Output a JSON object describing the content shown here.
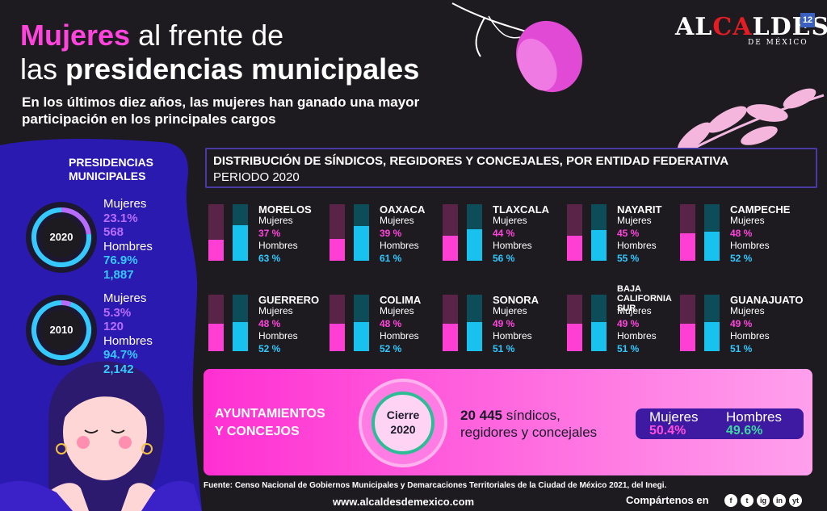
{
  "header": {
    "title_part1": "Mujeres",
    "title_part2": " al frente de",
    "title_part3": "las ",
    "title_part4": "presidencias municipales",
    "subtitle": "En los últimos diez años, las mujeres han ganado una mayor participación en los principales cargos"
  },
  "logo": {
    "text_a": "AL",
    "text_b": "CA",
    "text_c": "LDES",
    "sub": "DE MÉXICO",
    "badge": "12"
  },
  "presidencias": {
    "title_line1": "PRESIDENCIAS",
    "title_line2": "MUNICIPALES",
    "years": [
      {
        "year": "2020",
        "mujeres_label": "Mujeres",
        "mujeres_pct": "23.1%",
        "mujeres_n": "568",
        "hombres_label": "Hombres",
        "hombres_pct": "76.9%",
        "hombres_n": "1,887",
        "women_share": 23.1
      },
      {
        "year": "2010",
        "mujeres_label": "Mujeres",
        "mujeres_pct": "5.3%",
        "mujeres_n": "120",
        "hombres_label": "Hombres",
        "hombres_pct": "94.7%",
        "hombres_n": "2,142",
        "women_share": 5.3
      }
    ]
  },
  "distribution": {
    "title": "DISTRIBUCIÓN DE SÍNDICOS, REGIDORES Y CONCEJALES, POR ENTIDAD FEDERATIVA",
    "subtitle": "PERIODO 2020"
  },
  "chart_data": {
    "type": "bar",
    "title": "DISTRIBUCIÓN DE SÍNDICOS, REGIDORES Y CONCEJALES, POR ENTIDAD FEDERATIVA",
    "categories": [
      "MORELOS",
      "OAXACA",
      "TLAXCALA",
      "NAYARIT",
      "CAMPECHE",
      "GUERRERO",
      "COLIMA",
      "SONORA",
      "BAJA CALIFORNIA SUR",
      "GUANAJUATO"
    ],
    "series": [
      {
        "name": "Mujeres",
        "values": [
          37,
          39,
          44,
          45,
          48,
          48,
          48,
          49,
          49,
          49
        ]
      },
      {
        "name": "Hombres",
        "values": [
          63,
          61,
          56,
          55,
          52,
          52,
          52,
          51,
          51,
          51
        ]
      }
    ],
    "labels": {
      "women": [
        "37 %",
        "39 %",
        "44 %",
        "45 %",
        "48 %",
        "48 %",
        "48 %",
        "49 %",
        "49 %",
        "49 %"
      ],
      "men": [
        "63 %",
        "61 %",
        "56 %",
        "55 %",
        "52 %",
        "52 %",
        "52 %",
        "51 %",
        "51 %",
        "51 %"
      ]
    },
    "ylim": [
      0,
      100
    ],
    "colors": {
      "women": "#ff3ed4",
      "men": "#19c2ee"
    }
  },
  "legend_labels": {
    "women": "Mujeres",
    "men": "Hombres"
  },
  "ayuntamientos": {
    "title_line1": "AYUNTAMIENTOS",
    "title_line2": "Y CONCEJOS",
    "cierre_line1": "Cierre",
    "cierre_line2": "2020",
    "count_bold": "20 445",
    "count_text1": " síndicos,",
    "count_text2": "regidores y concejales",
    "mujeres_label": "Mujeres",
    "hombres_label": "Hombres",
    "mujeres_pct": "50.4%",
    "hombres_pct": "49.6%"
  },
  "footer": {
    "source": "Fuente: Censo Nacional de Gobiernos Municipales y Demarcaciones Territoriales de la Ciudad de México 2021, del Inegi.",
    "url": "www.alcaldesdemexico.com",
    "share": "Compártenos en",
    "social": [
      "f",
      "t",
      "ig",
      "in",
      "yt"
    ]
  }
}
